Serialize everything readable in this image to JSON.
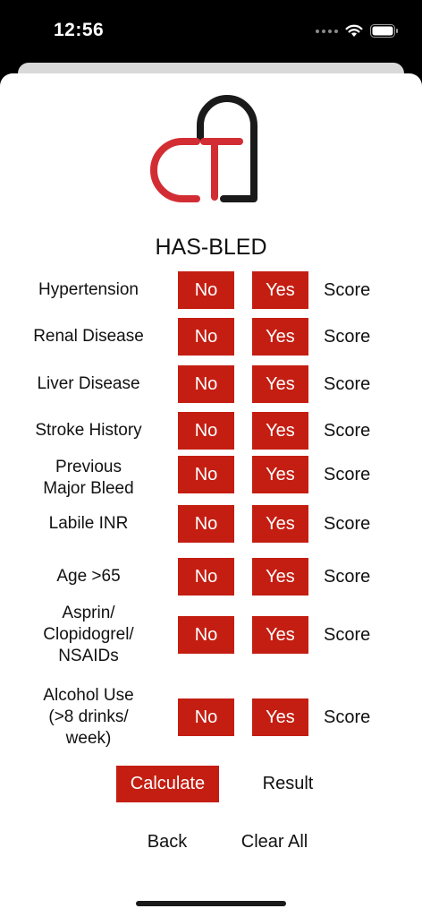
{
  "status_bar": {
    "time": "12:56"
  },
  "title": "HAS-BLED",
  "rows": [
    {
      "label": "Hypertension",
      "no": "No",
      "yes": "Yes",
      "score": "Score"
    },
    {
      "label": "Renal Disease",
      "no": "No",
      "yes": "Yes",
      "score": "Score"
    },
    {
      "label": "Liver Disease",
      "no": "No",
      "yes": "Yes",
      "score": "Score"
    },
    {
      "label": "Stroke History",
      "no": "No",
      "yes": "Yes",
      "score": "Score"
    },
    {
      "label": "Previous\nMajor Bleed",
      "no": "No",
      "yes": "Yes",
      "score": "Score"
    },
    {
      "label": "Labile INR",
      "no": "No",
      "yes": "Yes",
      "score": "Score"
    },
    {
      "label": "Age >65",
      "no": "No",
      "yes": "Yes",
      "score": "Score"
    },
    {
      "label": "Asprin/\nClopidogrel/\nNSAIDs",
      "no": "No",
      "yes": "Yes",
      "score": "Score"
    },
    {
      "label": "Alcohol Use\n(>8 drinks/\nweek)",
      "no": "No",
      "yes": "Yes",
      "score": "Score"
    }
  ],
  "actions": {
    "calculate": "Calculate",
    "result": "Result",
    "back": "Back",
    "clear_all": "Clear All"
  },
  "colors": {
    "accent": "#c41e12",
    "logo_dark": "#1a1a1a"
  },
  "icons": {
    "logo": "ct-heart-logo",
    "wifi": "wifi-icon",
    "battery": "battery-icon",
    "signal": "cellular-signal-icon"
  }
}
